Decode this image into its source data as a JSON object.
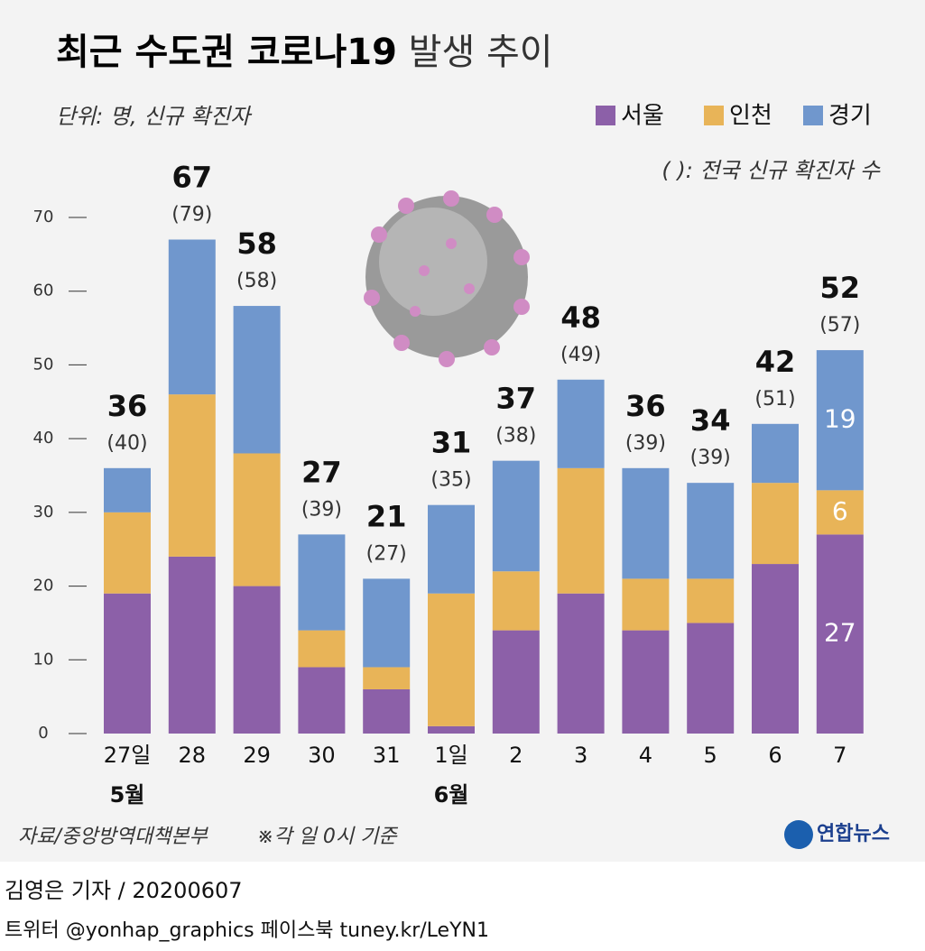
{
  "chart_data": {
    "type": "stacked_bar",
    "title": "최근 수도권 코로나19",
    "title_suffix": "발생 추이",
    "unit_note": "단위: 명, 신규 확진자",
    "paren_note": "( ): 전국 신규 확진자 수",
    "categories": [
      "27일",
      "28",
      "29",
      "30",
      "31",
      "1일",
      "2",
      "3",
      "4",
      "5",
      "6",
      "7"
    ],
    "months": [
      {
        "category": 0,
        "label": "5월"
      },
      {
        "category": 5,
        "label": "6월"
      }
    ],
    "series": [
      {
        "name": "서울",
        "color": "#8c60a8",
        "values": [
          19,
          24,
          20,
          9,
          6,
          1,
          14,
          19,
          14,
          15,
          23,
          27
        ]
      },
      {
        "name": "인천",
        "color": "#e8b458",
        "values": [
          11,
          22,
          18,
          5,
          3,
          18,
          8,
          17,
          7,
          6,
          11,
          6
        ]
      },
      {
        "name": "경기",
        "color": "#7097cd",
        "values": [
          6,
          21,
          20,
          13,
          12,
          12,
          15,
          12,
          15,
          13,
          8,
          19
        ]
      }
    ],
    "totals": [
      36,
      67,
      58,
      27,
      21,
      31,
      37,
      48,
      36,
      34,
      42,
      52
    ],
    "national": [
      40,
      79,
      58,
      39,
      27,
      35,
      38,
      49,
      39,
      39,
      51,
      57
    ],
    "national_labels": [
      "(40)",
      "(79)",
      "(58)",
      "(39)",
      "(27)",
      "(35)",
      "(38)",
      "(49)",
      "(39)",
      "(39)",
      "(51)",
      "(57)"
    ],
    "segment_labels_for": 11,
    "ylim": [
      0,
      70
    ],
    "yticks": [
      0,
      10,
      20,
      30,
      40,
      50,
      60,
      70
    ],
    "source": "자료/중앙방역대책본부",
    "basis": "※각 일 0시 기준",
    "logo": "연합뉴스"
  },
  "credit": {
    "byline": "김영은 기자 / 20200607",
    "social": "트위터 @yonhap_graphics  페이스북 tuney.kr/LeYN1"
  }
}
